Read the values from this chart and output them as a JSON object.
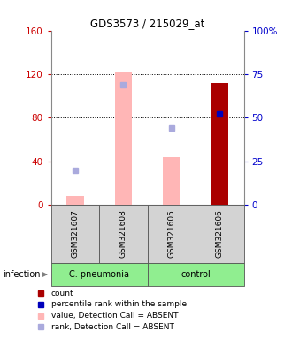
{
  "title": "GDS3573 / 215029_at",
  "samples": [
    "GSM321607",
    "GSM321608",
    "GSM321605",
    "GSM321606"
  ],
  "bar_color_absent": "#FFB6B6",
  "bar_color_present": "#AA0000",
  "dot_color_absent": "#AAAADD",
  "dot_color_present": "#0000BB",
  "ylim_left": [
    0,
    160
  ],
  "ylim_right": [
    0,
    100
  ],
  "left_ticks": [
    0,
    40,
    80,
    120,
    160
  ],
  "right_ticks": [
    0,
    25,
    50,
    75,
    100
  ],
  "bar_values": [
    8,
    122,
    44,
    112
  ],
  "bar_absent": [
    true,
    true,
    true,
    false
  ],
  "dot_values_pct": [
    20,
    69,
    44,
    52
  ],
  "dot_absent": [
    true,
    true,
    true,
    false
  ],
  "left_tick_color": "#CC0000",
  "right_tick_color": "#0000CC",
  "group_label": "infection",
  "cpneumonia_label": "C. pneumonia",
  "control_label": "control",
  "group_bg": "#90EE90",
  "sample_bg": "#D3D3D3",
  "legend_items": [
    {
      "label": "count",
      "color": "#AA0000"
    },
    {
      "label": "percentile rank within the sample",
      "color": "#0000BB"
    },
    {
      "label": "value, Detection Call = ABSENT",
      "color": "#FFB6B6"
    },
    {
      "label": "rank, Detection Call = ABSENT",
      "color": "#AAAADD"
    }
  ]
}
